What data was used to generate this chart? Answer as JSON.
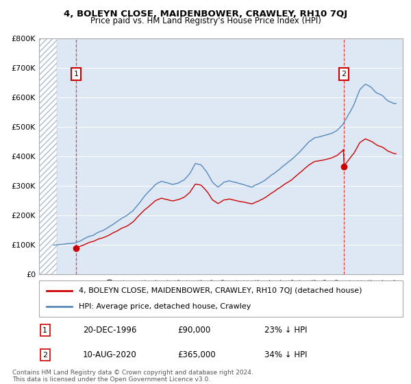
{
  "title": "4, BOLEYN CLOSE, MAIDENBOWER, CRAWLEY, RH10 7QJ",
  "subtitle": "Price paid vs. HM Land Registry's House Price Index (HPI)",
  "legend_line1": "4, BOLEYN CLOSE, MAIDENBOWER, CRAWLEY, RH10 7QJ (detached house)",
  "legend_line2": "HPI: Average price, detached house, Crawley",
  "annotation1_label": "1",
  "annotation1_date": "20-DEC-1996",
  "annotation1_price": "£90,000",
  "annotation1_hpi": "23% ↓ HPI",
  "annotation2_label": "2",
  "annotation2_date": "10-AUG-2020",
  "annotation2_price": "£365,000",
  "annotation2_hpi": "34% ↓ HPI",
  "footer": "Contains HM Land Registry data © Crown copyright and database right 2024.\nThis data is licensed under the Open Government Licence v3.0.",
  "hpi_color": "#5588bb",
  "property_color": "#cc0000",
  "sale_marker_color": "#cc0000",
  "annotation_box_color": "#cc0000",
  "background_plot": "#dde8f4",
  "ylim": [
    0,
    800000
  ],
  "yticks": [
    0,
    100000,
    200000,
    300000,
    400000,
    500000,
    600000,
    700000,
    800000
  ],
  "ytick_labels": [
    "£0",
    "£100K",
    "£200K",
    "£300K",
    "£400K",
    "£500K",
    "£600K",
    "£700K",
    "£800K"
  ],
  "xmin": 1993.7,
  "xmax": 2025.8,
  "hatch_xmin": 1993.7,
  "hatch_xmax": 1995.3,
  "sale1_x": 1996.97,
  "sale1_y": 90000,
  "sale2_x": 2020.6,
  "sale2_y": 365000,
  "vline1_x": 1996.97,
  "vline2_x": 2020.6,
  "hpi_years": [
    1994.5,
    1995.0,
    1995.5,
    1996.0,
    1996.5,
    1997.0,
    1997.5,
    1998.0,
    1998.5,
    1999.0,
    1999.5,
    2000.0,
    2000.5,
    2001.0,
    2001.5,
    2002.0,
    2002.5,
    2003.0,
    2003.5,
    2004.0,
    2004.5,
    2005.0,
    2005.5,
    2006.0,
    2006.5,
    2007.0,
    2007.5,
    2008.0,
    2008.5,
    2009.0,
    2009.5,
    2010.0,
    2010.5,
    2011.0,
    2011.5,
    2012.0,
    2012.5,
    2013.0,
    2013.5,
    2014.0,
    2014.5,
    2015.0,
    2015.5,
    2016.0,
    2016.5,
    2017.0,
    2017.5,
    2018.0,
    2018.5,
    2019.0,
    2019.5,
    2020.0,
    2020.5,
    2021.0,
    2021.5,
    2022.0,
    2022.5,
    2023.0,
    2023.5,
    2024.0,
    2024.5,
    2025.0
  ],
  "hpi_values": [
    95000,
    100000,
    102000,
    104000,
    106000,
    110000,
    118000,
    128000,
    135000,
    145000,
    152000,
    163000,
    175000,
    188000,
    198000,
    215000,
    240000,
    265000,
    285000,
    305000,
    315000,
    310000,
    305000,
    310000,
    320000,
    340000,
    375000,
    370000,
    345000,
    310000,
    295000,
    310000,
    315000,
    310000,
    305000,
    300000,
    295000,
    305000,
    315000,
    330000,
    345000,
    360000,
    375000,
    390000,
    410000,
    430000,
    450000,
    465000,
    470000,
    475000,
    480000,
    490000,
    510000,
    545000,
    580000,
    630000,
    650000,
    640000,
    620000,
    610000,
    590000,
    580000
  ]
}
